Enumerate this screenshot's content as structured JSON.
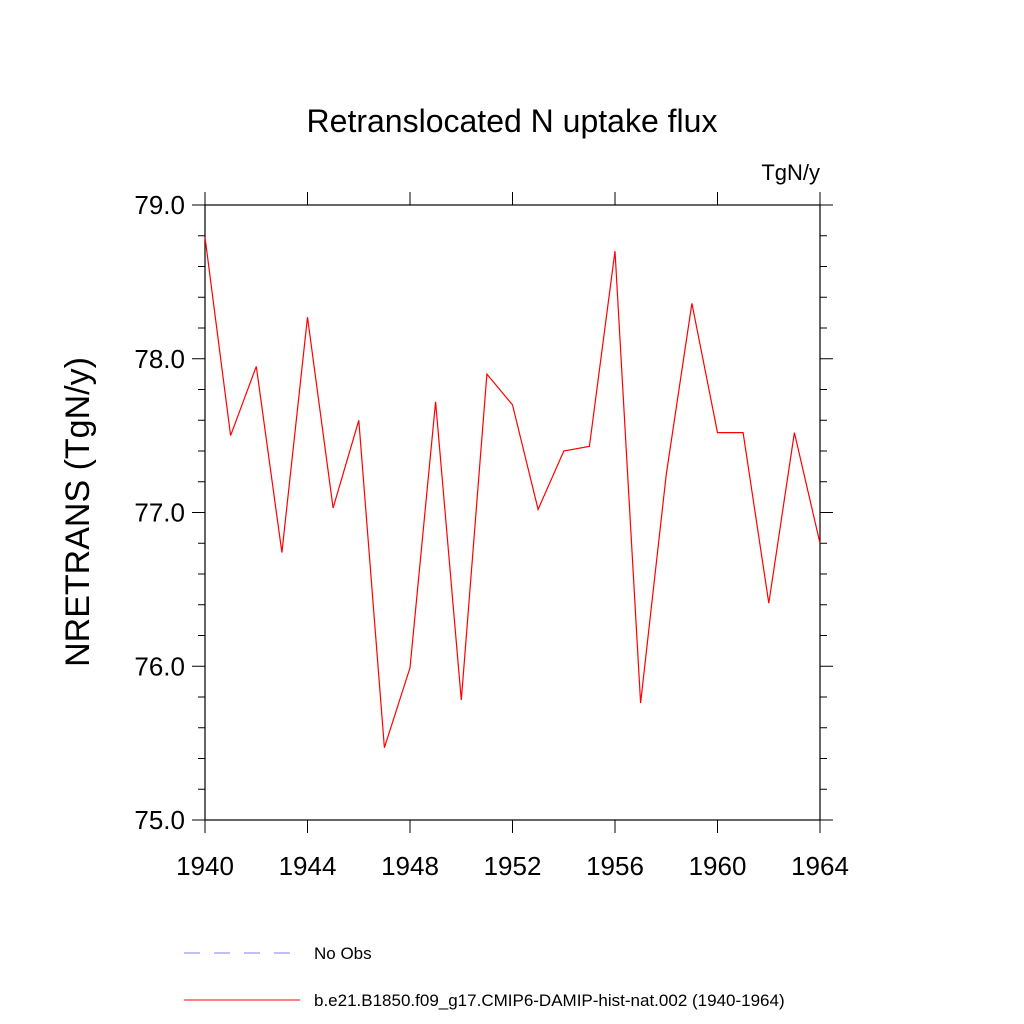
{
  "chart_data": {
    "type": "line",
    "title": "Retranslocated N uptake flux",
    "units": "TgN/y",
    "xlabel": "",
    "ylabel": "NRETRANS  (TgN/y)",
    "xlim": [
      1940,
      1964
    ],
    "ylim": [
      75.0,
      79.0
    ],
    "x_ticks": [
      1940,
      1944,
      1948,
      1952,
      1956,
      1960,
      1964
    ],
    "x_tick_labels": [
      "1940",
      "1944",
      "1948",
      "1952",
      "1956",
      "1960",
      "1964"
    ],
    "y_ticks": [
      75.0,
      76.0,
      77.0,
      78.0,
      79.0
    ],
    "y_tick_labels": [
      "75.0",
      "76.0",
      "77.0",
      "78.0",
      "79.0"
    ],
    "grid": false,
    "legend_position": "bottom",
    "series": [
      {
        "name": "b.e21.B1850.f09_g17.CMIP6-DAMIP-hist-nat.002 (1940-1964)",
        "color": "#ff0000",
        "style": "solid",
        "x": [
          1940,
          1941,
          1942,
          1943,
          1944,
          1945,
          1946,
          1947,
          1948,
          1949,
          1950,
          1951,
          1952,
          1953,
          1954,
          1955,
          1956,
          1957,
          1958,
          1959,
          1960,
          1961,
          1962,
          1963,
          1964
        ],
        "y": [
          78.79,
          77.5,
          77.95,
          76.74,
          78.27,
          77.03,
          77.6,
          75.47,
          75.99,
          77.72,
          75.78,
          77.9,
          77.7,
          77.02,
          77.4,
          77.43,
          78.7,
          75.76,
          77.25,
          78.36,
          77.52,
          77.52,
          76.41,
          77.52,
          76.8
        ]
      }
    ],
    "legend": [
      {
        "label": "No Obs",
        "color": "#7f7fff",
        "style": "dashed"
      },
      {
        "label": "b.e21.B1850.f09_g17.CMIP6-DAMIP-hist-nat.002 (1940-1964)",
        "color": "#ff0000",
        "style": "solid"
      }
    ]
  }
}
